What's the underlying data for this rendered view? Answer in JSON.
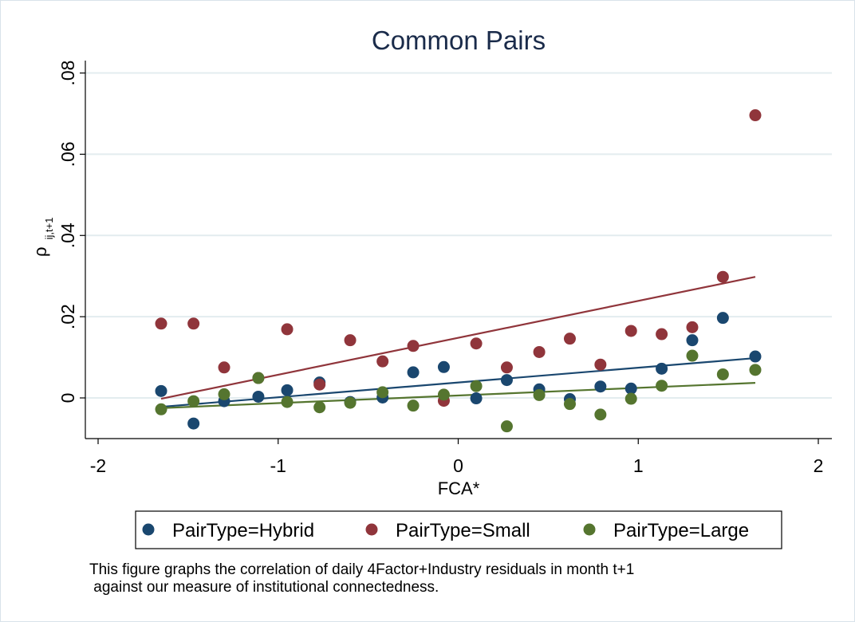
{
  "chart_data": {
    "type": "scatter",
    "title": "Common Pairs",
    "xlabel": "FCA*",
    "ylabel_main": "ρ",
    "ylabel_sub": "ij,t+1",
    "xlim": [
      -2,
      2
    ],
    "ylim": [
      -0.01,
      0.082
    ],
    "xticks": [
      -2,
      -1,
      0,
      1,
      2
    ],
    "xtick_labels": [
      "-2",
      "-1",
      "0",
      "1",
      "2"
    ],
    "yticks": [
      0,
      0.02,
      0.04,
      0.06,
      0.08
    ],
    "ytick_labels": [
      "0",
      ".02",
      ".04",
      ".06",
      ".08"
    ],
    "grid": true,
    "legend_position": "bottom",
    "series": [
      {
        "name": "PairType=Hybrid",
        "color": "#1a476f",
        "x": [
          -1.65,
          -1.47,
          -1.3,
          -1.11,
          -0.95,
          -0.77,
          -0.6,
          -0.42,
          -0.25,
          -0.08,
          0.1,
          0.27,
          0.45,
          0.62,
          0.79,
          0.96,
          1.13,
          1.3,
          1.47,
          1.65
        ],
        "y": [
          0.0017,
          -0.0063,
          -0.0008,
          0.0003,
          0.0019,
          0.0038,
          -0.001,
          0.0001,
          0.0063,
          0.0076,
          -0.0001,
          0.0044,
          0.0021,
          -0.0003,
          0.0028,
          0.0023,
          0.0072,
          0.0142,
          0.0197,
          0.0102
        ],
        "fit": [
          -0.0022,
          0.0098
        ]
      },
      {
        "name": "PairType=Small",
        "color": "#90353b",
        "x": [
          -1.65,
          -1.47,
          -1.3,
          -1.11,
          -0.95,
          -0.77,
          -0.6,
          -0.42,
          -0.25,
          -0.08,
          0.1,
          0.27,
          0.45,
          0.62,
          0.79,
          0.96,
          1.13,
          1.3,
          1.47,
          1.65
        ],
        "y": [
          0.0183,
          0.0183,
          0.0075,
          0.0049,
          0.0169,
          0.0033,
          0.0142,
          0.009,
          0.0128,
          -0.0007,
          0.0134,
          0.0075,
          0.0113,
          0.0146,
          0.0082,
          0.0165,
          0.0157,
          0.0174,
          0.0298,
          0.0696
        ],
        "fit": [
          -0.0002,
          0.0298
        ]
      },
      {
        "name": "PairType=Large",
        "color": "#55752f",
        "x": [
          -1.65,
          -1.47,
          -1.3,
          -1.11,
          -0.95,
          -0.77,
          -0.6,
          -0.42,
          -0.25,
          -0.08,
          0.1,
          0.27,
          0.45,
          0.62,
          0.79,
          0.96,
          1.13,
          1.3,
          1.47,
          1.65
        ],
        "y": [
          -0.0028,
          -0.0008,
          0.0009,
          0.0049,
          -0.001,
          -0.0023,
          -0.0012,
          0.0014,
          -0.0019,
          0.0008,
          0.0029,
          -0.007,
          0.0007,
          -0.0015,
          -0.0041,
          -0.0002,
          0.003,
          0.0104,
          0.0058,
          0.0069
        ],
        "fit": [
          -0.0025,
          0.0037
        ]
      }
    ]
  },
  "note": {
    "line1": "This figure graphs the correlation of daily 4Factor+Industry residuals in month t+1",
    "line2": " against our measure of institutional connectedness."
  }
}
